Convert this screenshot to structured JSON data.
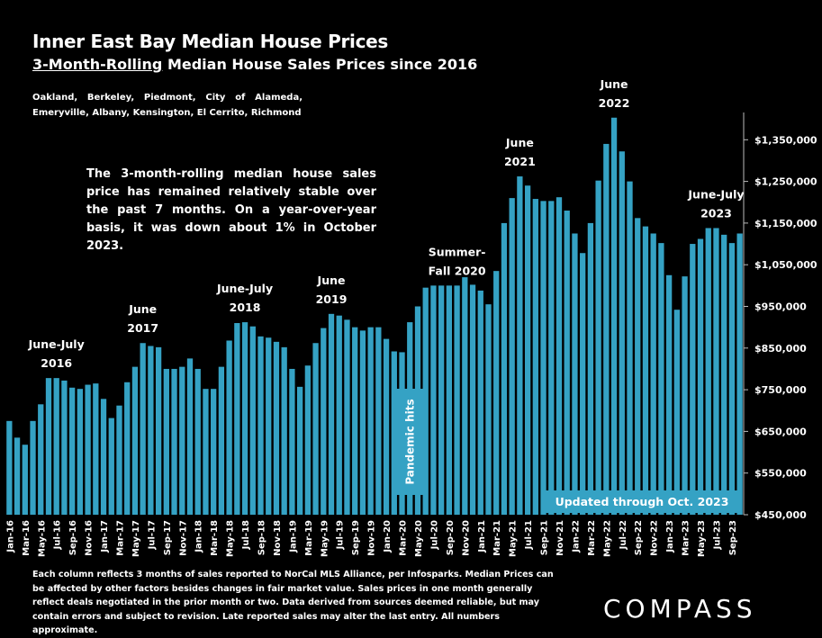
{
  "header": {
    "title": "Inner East Bay Median House Prices",
    "subtitle_underlined": "3-Month-Rolling",
    "subtitle_rest": " Median House Sales Prices since 2016",
    "cities": "Oakland, Berkeley, Piedmont, City of Alameda, Emeryville, Albany, Kensington, El Cerrito, Richmond"
  },
  "note": "The 3-month-rolling median house sales price has remained relatively stable over the past 7 months. On a year-over-year basis, it was down about 1% in October 2023.",
  "footnote": "Each column reflects 3 months of sales reported to NorCal MLS Alliance, per Infosparks. Median Prices can be affected by other factors besides changes in fair market value. Sales prices in one month generally reflect deals negotiated in the prior month or two. Data derived from sources deemed reliable, but may contain errors and subject to revision. Late reported sales may alter the last entry. All numbers approximate.",
  "logo": "COMPASS",
  "colors": {
    "bar": "#35a2c4",
    "background": "#000000",
    "text": "#ffffff"
  },
  "chart_data": {
    "type": "bar",
    "ylim": [
      450000,
      1400000
    ],
    "grid": false,
    "y_ticks": [
      "$450,000",
      "$550,000",
      "$650,000",
      "$750,000",
      "$850,000",
      "$950,000",
      "$1,050,000",
      "$1,150,000",
      "$1,250,000",
      "$1,350,000"
    ],
    "y_tick_values": [
      450000,
      550000,
      650000,
      750000,
      850000,
      950000,
      1050000,
      1150000,
      1250000,
      1350000
    ],
    "x_tick_labels": [
      "Jan-16",
      "Mar-16",
      "May-16",
      "Jul-16",
      "Sep-16",
      "Nov-16",
      "Jan-17",
      "Mar-17",
      "May-17",
      "Jul-17",
      "Sep-17",
      "Nov-17",
      "Jan-18",
      "Mar-18",
      "May-18",
      "Jul-18",
      "Sep-18",
      "Nov-18",
      "Jan-19",
      "Mar-19",
      "May-19",
      "Jul-19",
      "Sep-19",
      "Nov-19",
      "Jan-20",
      "Mar-20",
      "May-20",
      "Jul-20",
      "Sep-20",
      "Nov-20",
      "Jan-21",
      "Mar-21",
      "May-21",
      "Jul-21",
      "Sep-21",
      "Nov-21",
      "Jan-22",
      "Mar-22",
      "May-22",
      "Jul-22",
      "Sep-22",
      "Nov-22",
      "Jan-23",
      "Mar-23",
      "May-23",
      "Jul-23",
      "Sep-23"
    ],
    "values": [
      675000,
      635000,
      618000,
      675000,
      715000,
      778000,
      778000,
      772000,
      755000,
      752000,
      762000,
      765000,
      728000,
      682000,
      712000,
      768000,
      805000,
      862000,
      855000,
      852000,
      800000,
      800000,
      805000,
      825000,
      800000,
      752000,
      752000,
      805000,
      868000,
      910000,
      912000,
      902000,
      878000,
      875000,
      865000,
      852000,
      800000,
      757000,
      808000,
      862000,
      898000,
      932000,
      928000,
      918000,
      900000,
      892000,
      900000,
      900000,
      872000,
      842000,
      840000,
      912000,
      950000,
      995000,
      1000000,
      1000000,
      1000000,
      1000000,
      1020000,
      1002000,
      988000,
      955000,
      1035000,
      1150000,
      1210000,
      1262000,
      1240000,
      1208000,
      1203000,
      1203000,
      1212000,
      1180000,
      1125000,
      1078000,
      1150000,
      1252000,
      1340000,
      1403000,
      1322000,
      1250000,
      1162000,
      1142000,
      1125000,
      1102000,
      1025000,
      942000,
      1022000,
      1100000,
      1112000,
      1138000,
      1138000,
      1122000,
      1102000,
      1125000
    ],
    "callouts": [
      {
        "text": [
          "June-July",
          "2016"
        ],
        "bar": 6
      },
      {
        "text": [
          "June",
          "2017"
        ],
        "bar": 17
      },
      {
        "text": [
          "June-July",
          "2018"
        ],
        "bar": 30
      },
      {
        "text": [
          "June",
          "2019"
        ],
        "bar": 41
      },
      {
        "text": [
          "Summer-",
          "Fall 2020"
        ],
        "bar": 57
      },
      {
        "text": [
          "June",
          "2021"
        ],
        "bar": 65
      },
      {
        "text": [
          "June",
          "2022"
        ],
        "bar": 77
      },
      {
        "text": [
          "June-July",
          "2023"
        ],
        "bar": 90
      }
    ],
    "annotations": {
      "pandemic": "Pandemic hits",
      "updated": "Updated through Oct. 2023"
    }
  }
}
